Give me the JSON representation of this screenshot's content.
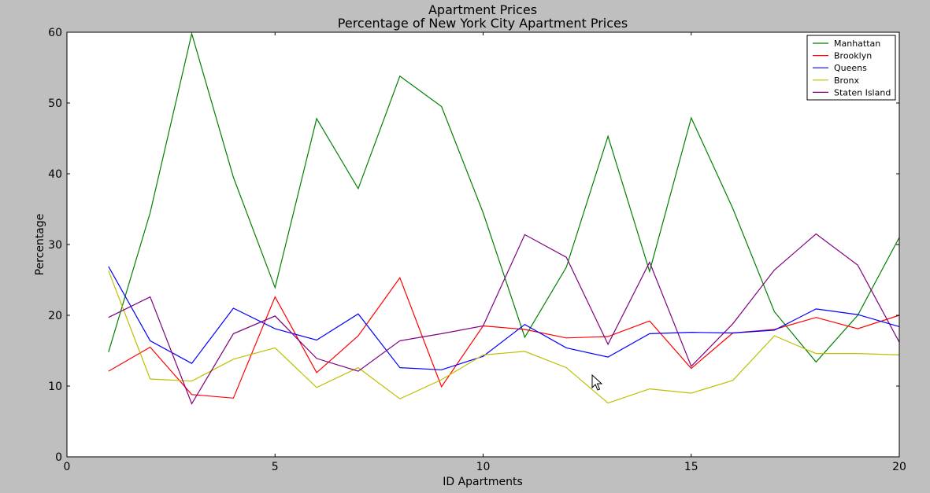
{
  "chart_data": {
    "type": "line",
    "title": "Apartment Prices",
    "subtitle": "Percentage of New York City Apartment Prices",
    "xlabel": "ID Apartments",
    "ylabel": "Percentage",
    "xlim": [
      0,
      20
    ],
    "ylim": [
      0,
      60
    ],
    "xticks": [
      0,
      5,
      10,
      15,
      20
    ],
    "yticks": [
      0,
      10,
      20,
      30,
      40,
      50,
      60
    ],
    "grid": false,
    "legend_position": "top-right",
    "x": [
      1,
      2,
      3,
      4,
      5,
      6,
      7,
      8,
      9,
      10,
      11,
      12,
      13,
      14,
      15,
      16,
      17,
      18,
      19,
      20
    ],
    "series": [
      {
        "name": "Manhattan",
        "color": "#008000",
        "values": [
          14.8,
          34.5,
          59.8,
          39.5,
          23.9,
          47.8,
          37.9,
          53.8,
          49.5,
          34.5,
          16.9,
          26.8,
          45.3,
          26.2,
          47.9,
          35.1,
          20.5,
          13.4,
          20.0,
          31.0
        ]
      },
      {
        "name": "Brooklyn",
        "color": "#ff0000",
        "values": [
          12.1,
          15.5,
          8.8,
          8.3,
          22.6,
          11.9,
          17.1,
          25.3,
          9.9,
          18.5,
          18.0,
          16.8,
          17.0,
          19.2,
          12.5,
          17.5,
          18.0,
          19.7,
          18.1,
          20.0
        ]
      },
      {
        "name": "Queens",
        "color": "#0000ff",
        "values": [
          26.9,
          16.4,
          13.2,
          21.0,
          18.1,
          16.5,
          20.2,
          12.6,
          12.3,
          14.2,
          18.7,
          15.4,
          14.1,
          17.4,
          17.6,
          17.5,
          17.9,
          20.9,
          20.1,
          18.4
        ]
      },
      {
        "name": "Bronx",
        "color": "#bfbf00",
        "values": [
          26.3,
          11.0,
          10.7,
          13.8,
          15.4,
          9.8,
          12.6,
          8.2,
          10.9,
          14.4,
          14.9,
          12.6,
          7.6,
          9.6,
          9.0,
          10.8,
          17.1,
          14.6,
          14.6,
          14.4
        ]
      },
      {
        "name": "Staten Island",
        "color": "#800080",
        "values": [
          19.7,
          22.6,
          7.5,
          17.4,
          19.9,
          13.9,
          12.1,
          16.4,
          17.4,
          18.5,
          31.4,
          28.2,
          15.9,
          27.5,
          12.8,
          18.8,
          26.4,
          31.5,
          27.1,
          16.2
        ]
      }
    ]
  }
}
